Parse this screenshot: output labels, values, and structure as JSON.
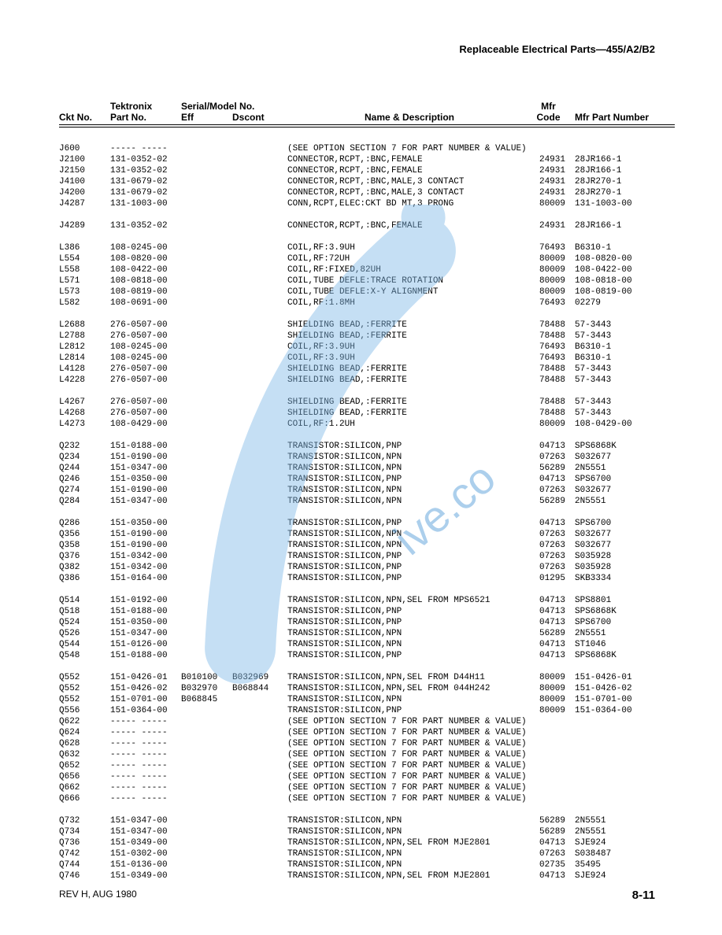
{
  "header": "Replaceable Electrical Parts—455/A2/B2",
  "columns": {
    "ckt": "Ckt No.",
    "tek": "Tektronix",
    "part": "Part No.",
    "serial": "Serial/Model No.",
    "eff": "Eff",
    "dscont": "Dscont",
    "name": "Name & Description",
    "mfr": "Mfr\nCode",
    "mfrpart": "Mfr Part Number"
  },
  "footer": {
    "rev": "REV H, AUG 1980",
    "page": "8-11"
  },
  "watermark": {
    "color": "#7fb9e8",
    "text_color": "#4a97d6"
  },
  "rows": [
    {
      "ckt": "J600",
      "part": "----- -----",
      "eff": "",
      "dscont": "",
      "name": "(SEE OPTION SECTION 7 FOR PART NUMBER & VALUE)",
      "mfr": "",
      "mfrpart": ""
    },
    {
      "ckt": "J2100",
      "part": "131-0352-02",
      "eff": "",
      "dscont": "",
      "name": "CONNECTOR,RCPT,:BNC,FEMALE",
      "mfr": "24931",
      "mfrpart": "28JR166-1"
    },
    {
      "ckt": "J2150",
      "part": "131-0352-02",
      "eff": "",
      "dscont": "",
      "name": "CONNECTOR,RCPT,:BNC,FEMALE",
      "mfr": "24931",
      "mfrpart": "28JR166-1"
    },
    {
      "ckt": "J4100",
      "part": "131-0679-02",
      "eff": "",
      "dscont": "",
      "name": "CONNECTOR,RCPT,:BNC,MALE,3 CONTACT",
      "mfr": "24931",
      "mfrpart": "28JR270-1"
    },
    {
      "ckt": "J4200",
      "part": "131-0679-02",
      "eff": "",
      "dscont": "",
      "name": "CONNECTOR,RCPT,:BNC,MALE,3 CONTACT",
      "mfr": "24931",
      "mfrpart": "28JR270-1"
    },
    {
      "ckt": "J4287",
      "part": "131-1003-00",
      "eff": "",
      "dscont": "",
      "name": "CONN,RCPT,ELEC:CKT BD MT,3 PRONG",
      "mfr": "80009",
      "mfrpart": "131-1003-00"
    },
    {
      "gap": true
    },
    {
      "ckt": "J4289",
      "part": "131-0352-02",
      "eff": "",
      "dscont": "",
      "name": "CONNECTOR,RCPT,:BNC,FEMALE",
      "mfr": "24931",
      "mfrpart": "28JR166-1"
    },
    {
      "gap": true
    },
    {
      "ckt": "L386",
      "part": "108-0245-00",
      "eff": "",
      "dscont": "",
      "name": "COIL,RF:3.9UH",
      "mfr": "76493",
      "mfrpart": "B6310-1"
    },
    {
      "ckt": "L554",
      "part": "108-0820-00",
      "eff": "",
      "dscont": "",
      "name": "COIL,RF:72UH",
      "mfr": "80009",
      "mfrpart": "108-0820-00"
    },
    {
      "ckt": "L558",
      "part": "108-0422-00",
      "eff": "",
      "dscont": "",
      "name": "COIL,RF:FIXED,82UH",
      "mfr": "80009",
      "mfrpart": "108-0422-00"
    },
    {
      "ckt": "L571",
      "part": "108-0818-00",
      "eff": "",
      "dscont": "",
      "name": "COIL,TUBE DEFLE:TRACE ROTATION",
      "mfr": "80009",
      "mfrpart": "108-0818-00"
    },
    {
      "ckt": "L573",
      "part": "108-0819-00",
      "eff": "",
      "dscont": "",
      "name": "COIL,TUBE DEFLE:X-Y ALIGNMENT",
      "mfr": "80009",
      "mfrpart": "108-0819-00"
    },
    {
      "ckt": "L582",
      "part": "108-0691-00",
      "eff": "",
      "dscont": "",
      "name": "COIL,RF:1.8MH",
      "mfr": "76493",
      "mfrpart": "02279"
    },
    {
      "gap": true
    },
    {
      "ckt": "L2688",
      "part": "276-0507-00",
      "eff": "",
      "dscont": "",
      "name": "SHIELDING BEAD,:FERRITE",
      "mfr": "78488",
      "mfrpart": "57-3443"
    },
    {
      "ckt": "L2788",
      "part": "276-0507-00",
      "eff": "",
      "dscont": "",
      "name": "SHIELDING BEAD,:FERRITE",
      "mfr": "78488",
      "mfrpart": "57-3443"
    },
    {
      "ckt": "L2812",
      "part": "108-0245-00",
      "eff": "",
      "dscont": "",
      "name": "COIL,RF:3.9UH",
      "mfr": "76493",
      "mfrpart": "B6310-1"
    },
    {
      "ckt": "L2814",
      "part": "108-0245-00",
      "eff": "",
      "dscont": "",
      "name": "COIL,RF:3.9UH",
      "mfr": "76493",
      "mfrpart": "B6310-1"
    },
    {
      "ckt": "L4128",
      "part": "276-0507-00",
      "eff": "",
      "dscont": "",
      "name": "SHIELDING BEAD,:FERRITE",
      "mfr": "78488",
      "mfrpart": "57-3443"
    },
    {
      "ckt": "L4228",
      "part": "276-0507-00",
      "eff": "",
      "dscont": "",
      "name": "SHIELDING BEAD,:FERRITE",
      "mfr": "78488",
      "mfrpart": "57-3443"
    },
    {
      "gap": true
    },
    {
      "ckt": "L4267",
      "part": "276-0507-00",
      "eff": "",
      "dscont": "",
      "name": "SHIELDING BEAD,:FERRITE",
      "mfr": "78488",
      "mfrpart": "57-3443"
    },
    {
      "ckt": "L4268",
      "part": "276-0507-00",
      "eff": "",
      "dscont": "",
      "name": "SHIELDING BEAD,:FERRITE",
      "mfr": "78488",
      "mfrpart": "57-3443"
    },
    {
      "ckt": "L4273",
      "part": "108-0429-00",
      "eff": "",
      "dscont": "",
      "name": "COIL,RF:1.2UH",
      "mfr": "80009",
      "mfrpart": "108-0429-00"
    },
    {
      "gap": true
    },
    {
      "ckt": "Q232",
      "part": "151-0188-00",
      "eff": "",
      "dscont": "",
      "name": "TRANSISTOR:SILICON,PNP",
      "mfr": "04713",
      "mfrpart": "SPS6868K"
    },
    {
      "ckt": "Q234",
      "part": "151-0190-00",
      "eff": "",
      "dscont": "",
      "name": "TRANSISTOR:SILICON,NPN",
      "mfr": "07263",
      "mfrpart": "S032677"
    },
    {
      "ckt": "Q244",
      "part": "151-0347-00",
      "eff": "",
      "dscont": "",
      "name": "TRANSISTOR:SILICON,NPN",
      "mfr": "56289",
      "mfrpart": "2N5551"
    },
    {
      "ckt": "Q246",
      "part": "151-0350-00",
      "eff": "",
      "dscont": "",
      "name": "TRANSISTOR:SILICON,PNP",
      "mfr": "04713",
      "mfrpart": "SPS6700"
    },
    {
      "ckt": "Q274",
      "part": "151-0190-00",
      "eff": "",
      "dscont": "",
      "name": "TRANSISTOR:SILICON,NPN",
      "mfr": "07263",
      "mfrpart": "S032677"
    },
    {
      "ckt": "Q284",
      "part": "151-0347-00",
      "eff": "",
      "dscont": "",
      "name": "TRANSISTOR:SILICON,NPN",
      "mfr": "56289",
      "mfrpart": "2N5551"
    },
    {
      "gap": true
    },
    {
      "ckt": "Q286",
      "part": "151-0350-00",
      "eff": "",
      "dscont": "",
      "name": "TRANSISTOR:SILICON,PNP",
      "mfr": "04713",
      "mfrpart": "SPS6700"
    },
    {
      "ckt": "Q356",
      "part": "151-0190-00",
      "eff": "",
      "dscont": "",
      "name": "TRANSISTOR:SILICON,NPN",
      "mfr": "07263",
      "mfrpart": "S032677"
    },
    {
      "ckt": "Q358",
      "part": "151-0190-00",
      "eff": "",
      "dscont": "",
      "name": "TRANSISTOR:SILICON,NPN",
      "mfr": "07263",
      "mfrpart": "S032677"
    },
    {
      "ckt": "Q376",
      "part": "151-0342-00",
      "eff": "",
      "dscont": "",
      "name": "TRANSISTOR:SILICON,PNP",
      "mfr": "07263",
      "mfrpart": "S035928"
    },
    {
      "ckt": "Q382",
      "part": "151-0342-00",
      "eff": "",
      "dscont": "",
      "name": "TRANSISTOR:SILICON,PNP",
      "mfr": "07263",
      "mfrpart": "S035928"
    },
    {
      "ckt": "Q386",
      "part": "151-0164-00",
      "eff": "",
      "dscont": "",
      "name": "TRANSISTOR:SILICON,PNP",
      "mfr": "01295",
      "mfrpart": "SKB3334"
    },
    {
      "gap": true
    },
    {
      "ckt": "Q514",
      "part": "151-0192-00",
      "eff": "",
      "dscont": "",
      "name": "TRANSISTOR:SILICON,NPN,SEL FROM MPS6521",
      "mfr": "04713",
      "mfrpart": "SPS8801"
    },
    {
      "ckt": "Q518",
      "part": "151-0188-00",
      "eff": "",
      "dscont": "",
      "name": "TRANSISTOR:SILICON,PNP",
      "mfr": "04713",
      "mfrpart": "SPS6868K"
    },
    {
      "ckt": "Q524",
      "part": "151-0350-00",
      "eff": "",
      "dscont": "",
      "name": "TRANSISTOR:SILICON,PNP",
      "mfr": "04713",
      "mfrpart": "SPS6700"
    },
    {
      "ckt": "Q526",
      "part": "151-0347-00",
      "eff": "",
      "dscont": "",
      "name": "TRANSISTOR:SILICON,NPN",
      "mfr": "56289",
      "mfrpart": "2N5551"
    },
    {
      "ckt": "Q544",
      "part": "151-0126-00",
      "eff": "",
      "dscont": "",
      "name": "TRANSISTOR:SILICON,NPN",
      "mfr": "04713",
      "mfrpart": "ST1046"
    },
    {
      "ckt": "Q548",
      "part": "151-0188-00",
      "eff": "",
      "dscont": "",
      "name": "TRANSISTOR:SILICON,PNP",
      "mfr": "04713",
      "mfrpart": "SPS6868K"
    },
    {
      "gap": true
    },
    {
      "ckt": "Q552",
      "part": "151-0426-01",
      "eff": "B010100",
      "dscont": "B032969",
      "name": "TRANSISTOR:SILICON,NPN,SEL FROM D44H11",
      "mfr": "80009",
      "mfrpart": "151-0426-01"
    },
    {
      "ckt": "Q552",
      "part": "151-0426-02",
      "eff": "B032970",
      "dscont": "B068844",
      "name": "TRANSISTOR:SILICON,NPN,SEL FROM 044H242",
      "mfr": "80009",
      "mfrpart": "151-0426-02"
    },
    {
      "ckt": "Q552",
      "part": "151-0701-00",
      "eff": "B068845",
      "dscont": "",
      "name": "TRANSISTOR:SILICON,NPN",
      "mfr": "80009",
      "mfrpart": "151-0701-00"
    },
    {
      "ckt": "Q556",
      "part": "151-0364-00",
      "eff": "",
      "dscont": "",
      "name": "TRANSISTOR:SILICON,PNP",
      "mfr": "80009",
      "mfrpart": "151-0364-00"
    },
    {
      "ckt": "Q622",
      "part": "----- -----",
      "eff": "",
      "dscont": "",
      "name": "(SEE OPTION SECTION 7 FOR PART NUMBER & VALUE)",
      "mfr": "",
      "mfrpart": ""
    },
    {
      "ckt": "Q624",
      "part": "----- -----",
      "eff": "",
      "dscont": "",
      "name": "(SEE OPTION SECTION 7 FOR PART NUMBER & VALUE)",
      "mfr": "",
      "mfrpart": ""
    },
    {
      "ckt": "Q628",
      "part": "----- -----",
      "eff": "",
      "dscont": "",
      "name": "(SEE OPTION SECTION 7 FOR PART NUMBER & VALUE)",
      "mfr": "",
      "mfrpart": ""
    },
    {
      "ckt": "Q632",
      "part": "----- -----",
      "eff": "",
      "dscont": "",
      "name": "(SEE OPTION SECTION 7 FOR PART NUMBER & VALUE)",
      "mfr": "",
      "mfrpart": ""
    },
    {
      "ckt": "Q652",
      "part": "----- -----",
      "eff": "",
      "dscont": "",
      "name": "(SEE OPTION SECTION 7 FOR PART NUMBER & VALUE)",
      "mfr": "",
      "mfrpart": ""
    },
    {
      "ckt": "Q656",
      "part": "----- -----",
      "eff": "",
      "dscont": "",
      "name": "(SEE OPTION SECTION 7 FOR PART NUMBER & VALUE)",
      "mfr": "",
      "mfrpart": ""
    },
    {
      "ckt": "Q662",
      "part": "----- -----",
      "eff": "",
      "dscont": "",
      "name": "(SEE OPTION SECTION 7 FOR PART NUMBER & VALUE)",
      "mfr": "",
      "mfrpart": ""
    },
    {
      "ckt": "Q666",
      "part": "----- -----",
      "eff": "",
      "dscont": "",
      "name": "(SEE OPTION SECTION 7 FOR PART NUMBER & VALUE)",
      "mfr": "",
      "mfrpart": ""
    },
    {
      "gap": true
    },
    {
      "ckt": "Q732",
      "part": "151-0347-00",
      "eff": "",
      "dscont": "",
      "name": "TRANSISTOR:SILICON,NPN",
      "mfr": "56289",
      "mfrpart": "2N5551"
    },
    {
      "ckt": "Q734",
      "part": "151-0347-00",
      "eff": "",
      "dscont": "",
      "name": "TRANSISTOR:SILICON,NPN",
      "mfr": "56289",
      "mfrpart": "2N5551"
    },
    {
      "ckt": "Q736",
      "part": "151-0349-00",
      "eff": "",
      "dscont": "",
      "name": "TRANSISTOR:SILICON,NPN,SEL FROM MJE2801",
      "mfr": "04713",
      "mfrpart": "SJE924"
    },
    {
      "ckt": "Q742",
      "part": "151-0302-00",
      "eff": "",
      "dscont": "",
      "name": "TRANSISTOR:SILICON,NPN",
      "mfr": "07263",
      "mfrpart": "S038487"
    },
    {
      "ckt": "Q744",
      "part": "151-0136-00",
      "eff": "",
      "dscont": "",
      "name": "TRANSISTOR:SILICON,NPN",
      "mfr": "02735",
      "mfrpart": "35495"
    },
    {
      "ckt": "Q746",
      "part": "151-0349-00",
      "eff": "",
      "dscont": "",
      "name": "TRANSISTOR:SILICON,NPN,SEL FROM MJE2801",
      "mfr": "04713",
      "mfrpart": "SJE924"
    }
  ]
}
